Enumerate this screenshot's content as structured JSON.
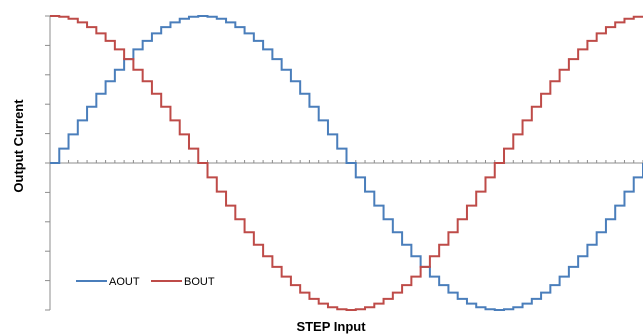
{
  "chart_data": {
    "type": "line",
    "xlabel": "STEP Input",
    "ylabel": "Output Current",
    "xlim": [
      0,
      64
    ],
    "ylim": [
      -1,
      1
    ],
    "legend": "bottom-left",
    "grid": false,
    "step_style": true,
    "x": [
      0,
      1,
      2,
      3,
      4,
      5,
      6,
      7,
      8,
      9,
      10,
      11,
      12,
      13,
      14,
      15,
      16,
      17,
      18,
      19,
      20,
      21,
      22,
      23,
      24,
      25,
      26,
      27,
      28,
      29,
      30,
      31,
      32,
      33,
      34,
      35,
      36,
      37,
      38,
      39,
      40,
      41,
      42,
      43,
      44,
      45,
      46,
      47,
      48,
      49,
      50,
      51,
      52,
      53,
      54,
      55,
      56,
      57,
      58,
      59,
      60,
      61,
      62,
      63,
      64
    ],
    "series": [
      {
        "name": "AOUT",
        "color": "#4a7ebb",
        "values": [
          0.0,
          0.098,
          0.195,
          0.29,
          0.383,
          0.471,
          0.556,
          0.634,
          0.707,
          0.773,
          0.831,
          0.882,
          0.924,
          0.957,
          0.981,
          0.995,
          1.0,
          0.995,
          0.981,
          0.957,
          0.924,
          0.882,
          0.831,
          0.773,
          0.707,
          0.634,
          0.556,
          0.471,
          0.383,
          0.29,
          0.195,
          0.098,
          0.0,
          -0.098,
          -0.195,
          -0.29,
          -0.383,
          -0.471,
          -0.556,
          -0.634,
          -0.707,
          -0.773,
          -0.831,
          -0.882,
          -0.924,
          -0.957,
          -0.981,
          -0.995,
          -1.0,
          -0.995,
          -0.981,
          -0.957,
          -0.924,
          -0.882,
          -0.831,
          -0.773,
          -0.707,
          -0.634,
          -0.556,
          -0.471,
          -0.383,
          -0.29,
          -0.195,
          -0.098,
          0.0
        ]
      },
      {
        "name": "BOUT",
        "color": "#be4b48",
        "values": [
          1.0,
          0.995,
          0.981,
          0.957,
          0.924,
          0.882,
          0.831,
          0.773,
          0.707,
          0.634,
          0.556,
          0.471,
          0.383,
          0.29,
          0.195,
          0.098,
          0.0,
          -0.098,
          -0.195,
          -0.29,
          -0.383,
          -0.471,
          -0.556,
          -0.634,
          -0.707,
          -0.773,
          -0.831,
          -0.882,
          -0.924,
          -0.957,
          -0.981,
          -0.995,
          -1.0,
          -0.995,
          -0.981,
          -0.957,
          -0.924,
          -0.882,
          -0.831,
          -0.773,
          -0.707,
          -0.634,
          -0.556,
          -0.471,
          -0.383,
          -0.29,
          -0.195,
          -0.098,
          0.0,
          0.098,
          0.195,
          0.29,
          0.383,
          0.471,
          0.556,
          0.634,
          0.707,
          0.773,
          0.831,
          0.882,
          0.924,
          0.957,
          0.981,
          0.995,
          1.0
        ]
      }
    ]
  }
}
